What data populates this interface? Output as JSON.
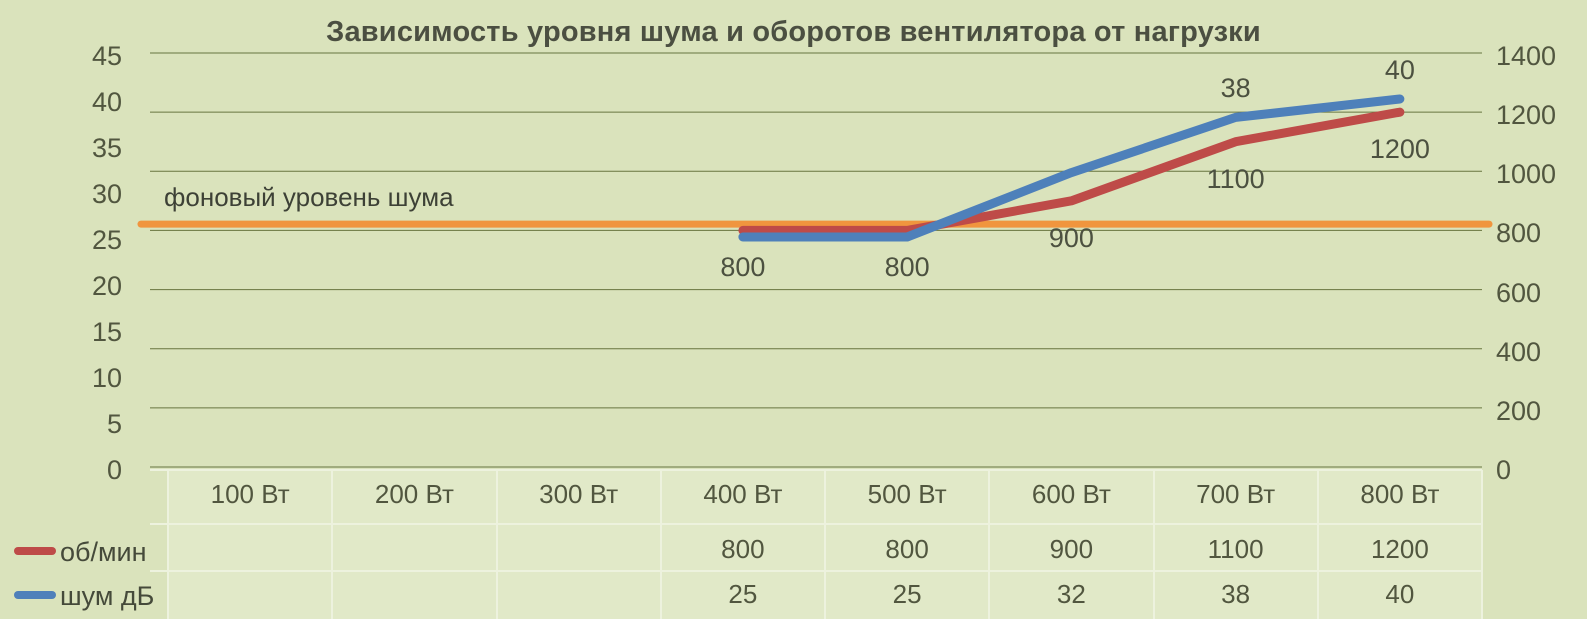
{
  "title": "Зависимость уровня шума и оборотов вентилятора от нагрузки",
  "annotation_label": "фоновый уровень шума",
  "colors": {
    "background": "#dae3bc",
    "table_cell": "#e1e9c8",
    "table_separator": "#edf2de",
    "gridline": "#67743f",
    "series_rpm": "#be4b48",
    "series_noise": "#4e80ba",
    "level_line": "#f0953e",
    "text": "#51563f",
    "title_text": "#4b4f41"
  },
  "chart_data": {
    "type": "line",
    "title": "Зависимость уровня шума и оборотов вентилятора от нагрузки",
    "categories": [
      "100 Вт",
      "200 Вт",
      "300 Вт",
      "400 Вт",
      "500 Вт",
      "600 Вт",
      "700 Вт",
      "800 Вт"
    ],
    "series": [
      {
        "name": "об/мин",
        "axis": "right",
        "color_key": "series_rpm",
        "values": [
          null,
          null,
          null,
          800,
          800,
          900,
          1100,
          1200
        ],
        "on_chart_labels": [
          3,
          4,
          5,
          6,
          7
        ],
        "label_side": "below"
      },
      {
        "name": "шум дБ",
        "axis": "left",
        "color_key": "series_noise",
        "values": [
          null,
          null,
          null,
          25,
          25,
          32,
          38,
          40
        ],
        "on_chart_labels": [
          6,
          7
        ],
        "label_side": "above"
      }
    ],
    "left_axis": {
      "min": 0,
      "max": 45,
      "step": 5,
      "ticks": [
        "45",
        "40",
        "35",
        "30",
        "25",
        "20",
        "15",
        "10",
        "5",
        "0"
      ]
    },
    "right_axis": {
      "min": 0,
      "max": 1400,
      "step": 200,
      "ticks": [
        "1400",
        "1200",
        "1000",
        "800",
        "600",
        "400",
        "200",
        "0"
      ]
    },
    "annotation": {
      "label": "фоновый уровень шума",
      "value_left_axis": 26.4
    },
    "grid": "horizontal gridlines at right-axis ticks",
    "legend_position": "bottom-left, as data-table row keys"
  },
  "table": {
    "rows": [
      {
        "key": "об/мин",
        "values": [
          "",
          "",
          "",
          "800",
          "800",
          "900",
          "1100",
          "1200"
        ]
      },
      {
        "key": "шум дБ",
        "values": [
          "",
          "",
          "",
          "25",
          "25",
          "32",
          "38",
          "40"
        ]
      }
    ]
  }
}
